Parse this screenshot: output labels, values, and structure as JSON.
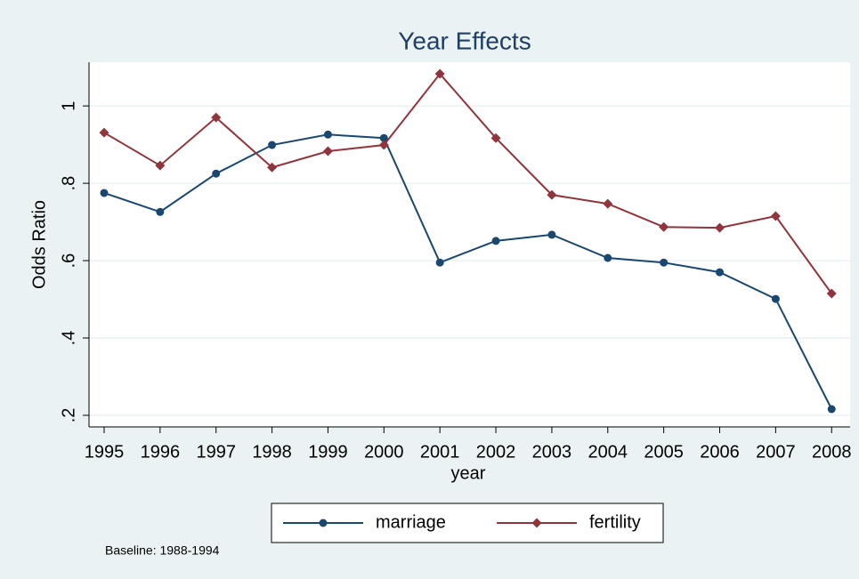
{
  "chart_data": {
    "type": "line",
    "title": "Year Effects",
    "x_label": "year",
    "y_label": "Odds Ratio",
    "note": "Baseline: 1988-1994",
    "x": [
      1995,
      1996,
      1997,
      1998,
      1999,
      2000,
      2001,
      2002,
      2003,
      2004,
      2005,
      2006,
      2007,
      2008
    ],
    "series": [
      {
        "name": "marriage",
        "color": "#1a476f",
        "marker": "circle",
        "values": [
          0.775,
          0.726,
          0.825,
          0.899,
          0.926,
          0.917,
          0.595,
          0.651,
          0.667,
          0.607,
          0.595,
          0.57,
          0.501,
          0.216
        ]
      },
      {
        "name": "fertility",
        "color": "#90353b",
        "marker": "diamond",
        "values": [
          0.931,
          0.846,
          0.97,
          0.841,
          0.883,
          0.899,
          1.083,
          0.917,
          0.77,
          0.747,
          0.687,
          0.685,
          0.715,
          0.515
        ]
      }
    ],
    "xlim": [
      1994.73,
      2008.33
    ],
    "xticks": [
      1995,
      1996,
      1997,
      1998,
      1999,
      2000,
      2001,
      2002,
      2003,
      2004,
      2005,
      2006,
      2007,
      2008
    ],
    "ylim": [
      0.17,
      1.113
    ],
    "yticks": [
      {
        "value": 0.2,
        "label": ".2"
      },
      {
        "value": 0.4,
        "label": ".4"
      },
      {
        "value": 0.6,
        "label": ".6"
      },
      {
        "value": 0.8,
        "label": ".8"
      },
      1
    ],
    "grid": true,
    "legend": "bottom"
  }
}
